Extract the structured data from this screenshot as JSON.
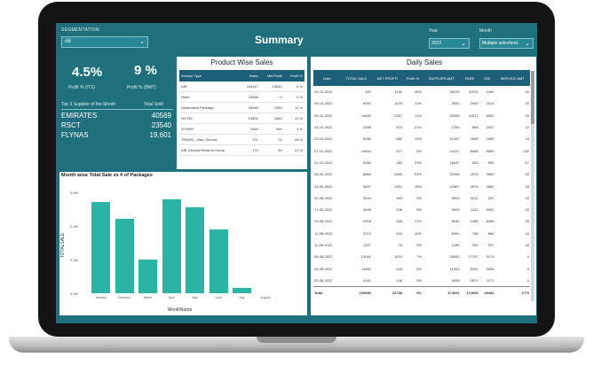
{
  "header": {
    "segment_label": "SEGMENTATION",
    "segment_value": "All",
    "title": "Summary",
    "year_label": "Year",
    "year_value": "2022",
    "month_label": "Month",
    "month_value": "Multiple selections"
  },
  "kpis": {
    "profit_pct": {
      "value": "4.5%",
      "label": "Profit % (ITS)"
    },
    "pass_pct": {
      "value": "9 %",
      "label": "Profit % (BMT)"
    }
  },
  "suppliers": {
    "header_left": "Top 3 Supplier of the Month",
    "header_right": "Total Sold",
    "rows": [
      {
        "name": "EMIRATES",
        "value": "40569"
      },
      {
        "name": "RSCT",
        "value": "23540"
      },
      {
        "name": "FLYNAS",
        "value": "19,601"
      }
    ]
  },
  "product_wise": {
    "title": "Product Wise Sales",
    "columns": [
      "Service Type",
      "Sales",
      "Net Profit",
      "Profit %"
    ],
    "rows": [
      [
        "AIR",
        "194117",
        "10830",
        "6 %"
      ],
      [
        "Hotel",
        "23488",
        "0",
        "0 %"
      ],
      [
        "Destination Package",
        "18489",
        "7490",
        "11 %"
      ],
      [
        "HOTEL",
        "13894",
        "1683",
        "12 %"
      ],
      [
        "OTHER",
        "2449",
        "349",
        "4 %"
      ],
      [
        "TRAVEL_Visa_Service",
        "171",
        "74",
        "26 %"
      ],
      [
        "AIR Ground Retail At Hours",
        "174",
        "39",
        "21 %"
      ]
    ]
  },
  "daily_sales": {
    "title": "Daily Sales",
    "columns": [
      "Date",
      "TOTAL SALE",
      "NET PROFIT",
      "Profit %",
      "SUPPLIER AMT",
      "FARE",
      "TAX",
      "SERVICE AMT"
    ],
    "rows": [
      [
        "29-10-2022",
        "320",
        "1150",
        "36%",
        "28193",
        "11925",
        "1450",
        "40"
      ],
      [
        "28-10-2022",
        "9000",
        "1100",
        "11%",
        "2830",
        "2900",
        "2010",
        "20"
      ],
      [
        "26-10-2022",
        "19840",
        "2187",
        "11%",
        "33535",
        "11871",
        "6052",
        "20"
      ],
      [
        "24-10-2022",
        "2458",
        "874",
        "-21%",
        "2755",
        "868",
        "1057",
        "12"
      ],
      [
        "23-10-2022",
        "5056",
        "660",
        "14%",
        "11497",
        "2648",
        "1659",
        "24"
      ],
      [
        "07-10-2022",
        "14844",
        "677",
        "5%",
        "14127",
        "8468",
        "5659",
        "130"
      ],
      [
        "01-10-2022",
        "2083",
        "352",
        "23%",
        "16637",
        "828",
        "695",
        "67"
      ],
      [
        "28-09-2022",
        "8665",
        "2655",
        "24%",
        "22345",
        "4576",
        "4550",
        "43"
      ],
      [
        "14-09-2022",
        "9457",
        "1391",
        "15%",
        "12667",
        "4575",
        "4552",
        "43"
      ],
      [
        "20-08-2022",
        "5244",
        "463",
        "3%",
        "5053",
        "4212",
        "257",
        "43"
      ],
      [
        "17-08-2022",
        "3645",
        "236",
        "5%",
        "3093",
        "1112",
        "9001",
        "43"
      ],
      [
        "15-08-2022",
        "2918",
        "338",
        "17%",
        "6639",
        "1388",
        "8268",
        "33"
      ],
      [
        "12-08-2022",
        "2373",
        "434",
        "10%",
        "6391",
        "798",
        "660",
        "43"
      ],
      [
        "11-08-2022",
        "1157",
        "76",
        "5%",
        "1283",
        "394",
        "207",
        "43"
      ],
      [
        "08-08-2022",
        "21041",
        "1610",
        "7%",
        "20693",
        "17157",
        "3174",
        "0"
      ],
      [
        "04-08-2022",
        "11983",
        "433",
        "4%",
        "11553",
        "8322",
        "3326",
        "0"
      ],
      [
        "02-08-2022",
        "4241",
        "146",
        "3%",
        "4095",
        "2870",
        "1171",
        "0"
      ]
    ],
    "total": [
      "Total",
      "235989",
      "22788",
      "9%",
      "373691",
      "172659",
      "49484",
      "1770"
    ]
  },
  "month_chart": {
    "title": "Month wise Total Sale vs # of Packages",
    "xlabel": "MonthName",
    "ylabel": "TOTALSALE",
    "y_ticks": [
      "0.6M",
      "0.4M",
      "0.2M",
      "0.0M"
    ]
  },
  "chart_data": {
    "type": "bar",
    "title": "Month wise Total Sale vs # of Packages",
    "xlabel": "MonthName",
    "ylabel": "TOTALSALE",
    "categories": [
      "January",
      "February",
      "March",
      "April",
      "May",
      "June",
      "July",
      "August"
    ],
    "values": [
      0.54,
      0.44,
      0.2,
      0.56,
      0.51,
      0.38,
      0.03,
      0.0
    ],
    "ylim": [
      0,
      0.6
    ],
    "grid": false
  }
}
